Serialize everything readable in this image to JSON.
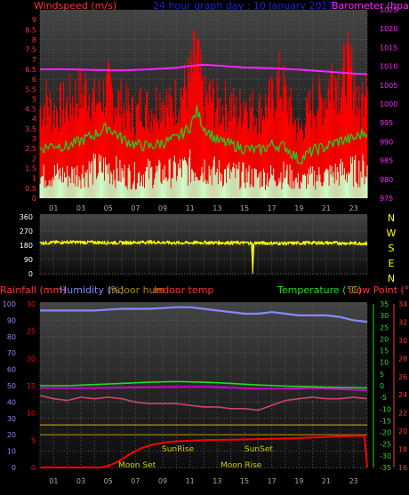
{
  "header": {
    "left_label": "Windspeed (m/s)",
    "center_label": "24 hour graph day : 10 January 2017",
    "right_label": "Barometer (hpa)"
  },
  "compass": [
    "N",
    "W",
    "S",
    "E",
    "N"
  ],
  "bottom_header": {
    "rainfall": "Rainfall (mm)",
    "humidity": "Humidity (%)",
    "indoor_hum": "Indoor hum",
    "indoor_temp": "Indoor temp",
    "temperature": "Temperature (°C)",
    "dew_point": "Dew Point (°C)"
  },
  "events": [
    "Moon Set",
    "SunRise",
    "SunSet",
    "Moon Rise"
  ],
  "colors": {
    "wind": "#ff0000",
    "gust_line": "#22cc22",
    "avg_wind": "#ccffcc",
    "barometer": "#ff22ff",
    "direction": "#ffff00",
    "rain": "#ff0000",
    "humidity": "#8888ff",
    "indoor_hum": "#aa8800",
    "indoor_temp": "#cc4466",
    "temperature": "#22dd22",
    "dew_point": "#cc00cc",
    "left_axis": "#ff3333",
    "bottom_left_axis": "#8888ff",
    "right_axis_green": "#22dd22",
    "right_axis_red": "#ff3333"
  },
  "chart_data": [
    {
      "type": "line",
      "title": "24 hour graph day : 10 January 2017",
      "xlabel": "",
      "ylabel": "Windspeed (m/s)",
      "x_ticks": [
        "01",
        "03",
        "05",
        "07",
        "09",
        "11",
        "13",
        "15",
        "17",
        "19",
        "21",
        "23"
      ],
      "y_ticks": [
        "0",
        "0.5",
        "1",
        "1.5",
        "2",
        "2.5",
        "3",
        "3.5",
        "4",
        "4.5",
        "5",
        "5.5",
        "6",
        "6.5",
        "7",
        "7.5",
        "8",
        "8.5",
        "9"
      ],
      "ylim": [
        0,
        9.5
      ],
      "y2_label": "Barometer (hpa)",
      "y2_ticks": [
        "975",
        "980",
        "985",
        "990",
        "995",
        "1000",
        "1005",
        "1010",
        "1015",
        "1020",
        "1025"
      ],
      "y2lim": [
        975,
        1025
      ],
      "xlim": [
        0,
        24
      ],
      "series": [
        {
          "name": "barometer",
          "axis": "right",
          "x": [
            0,
            2,
            4,
            6,
            8,
            10,
            11,
            12,
            13,
            15,
            17,
            19,
            21,
            23,
            24
          ],
          "values": [
            1009.2,
            1009.2,
            1009,
            1008.9,
            1009.2,
            1009.6,
            1010.1,
            1010.4,
            1010.2,
            1009.7,
            1009.5,
            1009.1,
            1008.6,
            1008.1,
            1007.9
          ]
        },
        {
          "name": "gust",
          "axis": "left",
          "x": [
            0,
            1,
            2,
            3,
            4,
            5,
            6,
            7,
            8,
            9,
            10,
            11,
            11.5,
            12,
            13,
            14,
            15,
            16,
            17,
            18,
            19,
            20,
            21,
            22,
            23,
            24
          ],
          "values": [
            2.5,
            2.7,
            2.6,
            2.9,
            3.2,
            3.6,
            3.0,
            2.7,
            2.6,
            2.8,
            3.0,
            3.6,
            4.4,
            3.6,
            2.9,
            2.7,
            2.5,
            2.4,
            2.7,
            2.6,
            1.9,
            2.4,
            2.6,
            2.9,
            3.0,
            3.4
          ]
        },
        {
          "name": "wind",
          "axis": "left",
          "x": [
            0,
            0.5,
            1,
            1.5,
            2,
            2.5,
            3,
            3.5,
            4,
            4.5,
            5,
            5.5,
            6,
            6.5,
            7,
            7.5,
            8,
            8.5,
            9,
            9.5,
            10,
            10.5,
            11,
            11.5,
            12,
            12.5,
            13,
            13.5,
            14,
            14.5,
            15,
            15.5,
            16,
            16.5,
            17,
            17.5,
            18,
            18.5,
            19,
            19.5,
            20,
            20.5,
            21,
            21.5,
            22,
            22.5,
            23,
            23.5,
            24
          ],
          "values": [
            5.8,
            6.4,
            5.6,
            5.9,
            6.1,
            6.6,
            6.9,
            7.2,
            6.2,
            6.5,
            7.1,
            6.5,
            6.0,
            5.8,
            5.2,
            6.3,
            5.6,
            6.2,
            6.6,
            5.8,
            6.4,
            7.0,
            7.6,
            9.5,
            6.2,
            6.6,
            5.9,
            6.0,
            6.1,
            5.4,
            6.5,
            5.8,
            5.5,
            6.0,
            6.3,
            7.6,
            6.7,
            5.5,
            4.2,
            5.2,
            6.2,
            6.3,
            6.6,
            8.4,
            7.2,
            8.6,
            7.8,
            5.3,
            9.6
          ]
        },
        {
          "name": "avg_wind",
          "axis": "left",
          "x": [
            0,
            1,
            2,
            3,
            4,
            5,
            6,
            7,
            8,
            9,
            10,
            11,
            12,
            13,
            14,
            15,
            16,
            17,
            18,
            19,
            20,
            21,
            22,
            23,
            24
          ],
          "values": [
            1.3,
            1.5,
            1.4,
            1.6,
            1.8,
            1.9,
            1.5,
            1.4,
            1.6,
            1.5,
            1.7,
            1.9,
            2.0,
            1.6,
            1.5,
            1.4,
            1.3,
            1.4,
            1.5,
            1.0,
            1.3,
            1.4,
            1.6,
            1.7,
            1.8
          ]
        }
      ]
    },
    {
      "type": "line",
      "title": "",
      "ylabel": "",
      "y_ticks": [
        "0",
        "90",
        "180",
        "270",
        "360"
      ],
      "ylim": [
        0,
        360
      ],
      "xlim": [
        0,
        24
      ],
      "series": [
        {
          "name": "direction",
          "x": [
            0,
            2,
            4,
            6,
            8,
            10,
            12,
            14,
            15.5,
            15.6,
            15.7,
            16,
            18,
            20,
            22,
            24
          ],
          "values": [
            195,
            200,
            198,
            196,
            200,
            195,
            197,
            196,
            195,
            30,
            195,
            195,
            192,
            196,
            194,
            192
          ]
        }
      ]
    },
    {
      "type": "line",
      "title": "",
      "ylabel": "Humidity (%)",
      "x_ticks": [
        "01",
        "03",
        "05",
        "07",
        "09",
        "11",
        "13",
        "15",
        "17",
        "19",
        "21",
        "23"
      ],
      "left_ticks": [
        "0",
        "10",
        "20",
        "30",
        "40",
        "50",
        "60",
        "70",
        "80",
        "90",
        "100"
      ],
      "ylim": [
        0,
        100
      ],
      "rain_ticks": [
        "0",
        "5",
        "10",
        "15",
        "20",
        "25",
        "30"
      ],
      "rainlim": [
        0,
        30
      ],
      "temp_ticks": [
        "-35",
        "-30",
        "-25",
        "-20",
        "-15",
        "-10",
        "-5",
        "0",
        "5",
        "10",
        "15",
        "20",
        "25",
        "30",
        "35"
      ],
      "templim": [
        -35,
        35
      ],
      "dew_ticks": [
        "16",
        "18",
        "20",
        "22",
        "24",
        "26",
        "28",
        "30",
        "32",
        "34"
      ],
      "xlim": [
        0,
        24
      ],
      "series": [
        {
          "name": "humidity",
          "axis": "left",
          "x": [
            0,
            2,
            4,
            6,
            8,
            10,
            11,
            12,
            13,
            14,
            15,
            16,
            17,
            18,
            19,
            20,
            21,
            22,
            23,
            24
          ],
          "values": [
            96,
            96,
            96,
            97,
            97,
            98,
            98,
            97,
            96,
            95,
            94,
            94,
            95,
            94,
            93,
            93,
            93,
            92,
            90,
            89
          ]
        },
        {
          "name": "temperature",
          "axis": "temp",
          "x": [
            0,
            2,
            4,
            6,
            8,
            10,
            12,
            14,
            16,
            18,
            20,
            22,
            24
          ],
          "values": [
            0,
            0,
            0.5,
            1,
            1.5,
            1.8,
            1.5,
            1,
            0.3,
            -0.2,
            -0.5,
            -0.8,
            -1
          ]
        },
        {
          "name": "dew_point",
          "axis": "temp",
          "x": [
            0,
            4,
            8,
            12,
            16,
            18,
            20,
            24
          ],
          "values": [
            -1,
            -1,
            -0.7,
            -0.5,
            -1.2,
            -1.2,
            -1,
            -2
          ]
        },
        {
          "name": "indoor_temp",
          "axis": "left",
          "x": [
            0,
            1,
            2,
            3,
            4,
            5,
            6,
            7,
            8,
            9,
            10,
            11,
            12,
            13,
            14,
            15,
            16,
            17,
            18,
            19,
            20,
            21,
            22,
            23,
            24
          ],
          "values": [
            44,
            42,
            41,
            43,
            42,
            43,
            42,
            40,
            39,
            39,
            39,
            38,
            37,
            37,
            36,
            36,
            35,
            38,
            41,
            42,
            43,
            42,
            42,
            43,
            42
          ]
        },
        {
          "name": "indoor_hum",
          "axis": "left",
          "x": [
            0,
            4,
            8,
            12,
            16,
            20,
            24
          ],
          "values": [
            26,
            26,
            26,
            26,
            26,
            26,
            26
          ]
        },
        {
          "name": "indoor_hum_low",
          "axis": "left",
          "x": [
            0,
            24
          ],
          "values": [
            20,
            20
          ]
        },
        {
          "name": "rain",
          "axis": "rain",
          "x": [
            0,
            4.5,
            5,
            5.5,
            6,
            6.5,
            7,
            7.5,
            8,
            8.5,
            9,
            9.5,
            10,
            11,
            12,
            14,
            16,
            18,
            19,
            20,
            21,
            22,
            23,
            23.8,
            24
          ],
          "values": [
            0,
            0,
            0.3,
            0.8,
            1.5,
            2.3,
            3.0,
            3.6,
            4.0,
            4.3,
            4.5,
            4.7,
            4.8,
            4.9,
            5.0,
            5.1,
            5.2,
            5.3,
            5.4,
            5.5,
            5.6,
            5.7,
            5.8,
            5.8,
            0
          ]
        }
      ]
    }
  ]
}
